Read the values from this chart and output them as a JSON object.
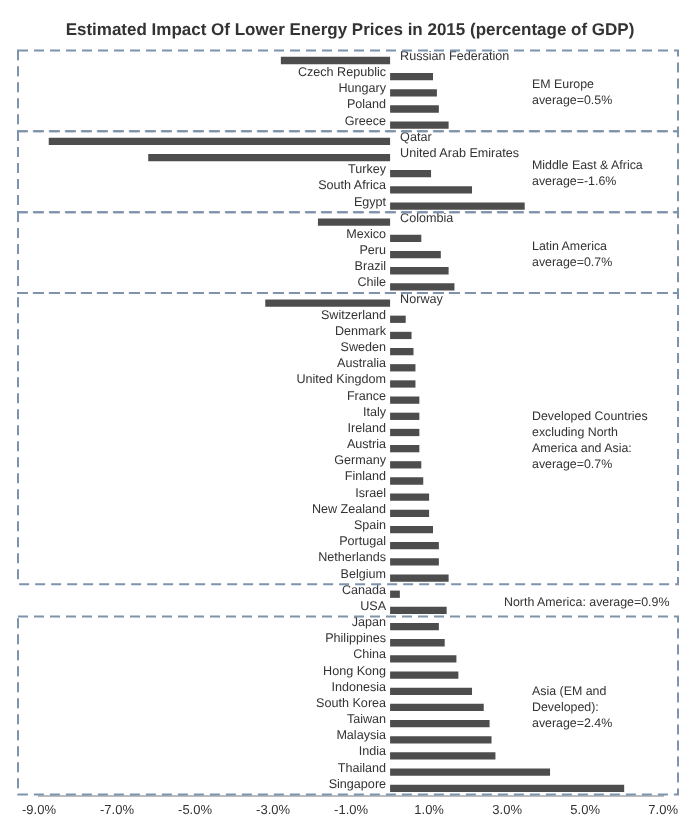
{
  "chart_data": {
    "type": "bar",
    "orientation": "horizontal",
    "title": "Estimated Impact Of Lower Energy Prices in 2015 (percentage of GDP)",
    "categories": [
      "Russian Federation",
      "Czech Republic",
      "Hungary",
      "Poland",
      "Greece",
      "Qatar",
      "United Arab Emirates",
      "Turkey",
      "South Africa",
      "Egypt",
      "Colombia",
      "Mexico",
      "Peru",
      "Brazil",
      "Chile",
      "Norway",
      "Switzerland",
      "Denmark",
      "Sweden",
      "Australia",
      "United Kingdom",
      "France",
      "Italy",
      "Ireland",
      "Austria",
      "Germany",
      "Finland",
      "Israel",
      "New Zealand",
      "Spain",
      "Portugal",
      "Netherlands",
      "Belgium",
      "Canada",
      "USA",
      "Japan",
      "Philippines",
      "China",
      "Hong Kong",
      "Indonesia",
      "South Korea",
      "Taiwan",
      "Malaysia",
      "India",
      "Thailand",
      "Singapore"
    ],
    "values": [
      -2.8,
      1.1,
      1.2,
      1.25,
      1.5,
      -8.75,
      -6.2,
      1.05,
      2.1,
      3.45,
      -1.85,
      0.8,
      1.3,
      1.5,
      1.65,
      -3.2,
      0.4,
      0.55,
      0.6,
      0.65,
      0.65,
      0.75,
      0.75,
      0.75,
      0.75,
      0.8,
      0.85,
      1.0,
      1.0,
      1.1,
      1.25,
      1.25,
      1.5,
      0.25,
      1.45,
      1.25,
      1.4,
      1.7,
      1.75,
      2.1,
      2.4,
      2.55,
      2.6,
      2.7,
      4.1,
      6.0
    ],
    "color": "#4d4d4d",
    "xlim": [
      -9,
      7
    ],
    "xticks": [
      {
        "value": -9,
        "label": "-9.0%"
      },
      {
        "value": -7,
        "label": "-7.0%"
      },
      {
        "value": -5,
        "label": "-5.0%"
      },
      {
        "value": -3,
        "label": "-3.0%"
      },
      {
        "value": -1,
        "label": "-1.0%"
      },
      {
        "value": 1,
        "label": "1.0%"
      },
      {
        "value": 3,
        "label": "3.0%"
      },
      {
        "value": 5,
        "label": "5.0%"
      },
      {
        "value": 7,
        "label": "7.0%"
      }
    ],
    "grid": false,
    "legend": false,
    "annotations": [
      "EM Europe average=0.5%",
      "Middle East & Africa average=-1.6%",
      "Latin America average=0.7%",
      "Developed Countries excluding North America and Asia: average=0.7%",
      "North America: average=0.9%",
      "Asia (EM and Developed): average=2.4%"
    ]
  }
}
